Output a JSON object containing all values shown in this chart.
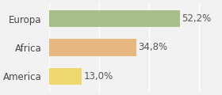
{
  "categories": [
    "America",
    "Africa",
    "Europa"
  ],
  "values": [
    13.0,
    34.8,
    52.2
  ],
  "labels": [
    "13,0%",
    "34,8%",
    "52,2%"
  ],
  "bar_colors": [
    "#f0d870",
    "#e8b882",
    "#a8bf8a"
  ],
  "background_color": "#f2f2f2",
  "xlim": [
    0,
    68
  ],
  "bar_height": 0.58,
  "label_fontsize": 8.5,
  "tick_fontsize": 8.5
}
